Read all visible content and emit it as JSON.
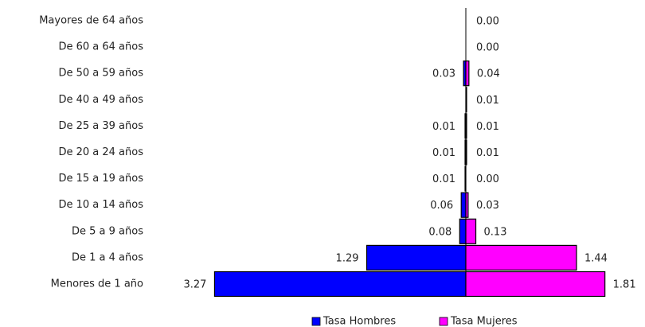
{
  "chart_data": {
    "type": "pyramid",
    "categories": [
      "Mayores de 64 años",
      "De 60 a 64 años",
      "De 50 a 59 años",
      "De 40 a 49 años",
      "De 25 a 39 años",
      "De 20 a 24 años",
      "De 15 a 19 años",
      "De 10 a 14 años",
      "De 5 a 9 años",
      "De 1 a 4 años",
      "Menores de 1 año"
    ],
    "series": [
      {
        "name": "Tasa Hombres",
        "color": "#0000ff",
        "side": "left",
        "values": [
          null,
          null,
          0.03,
          null,
          0.01,
          0.01,
          0.01,
          0.06,
          0.08,
          1.29,
          3.27
        ],
        "value_labels": [
          null,
          null,
          "0.03",
          null,
          "0.01",
          "0.01",
          "0.01",
          "0.06",
          "0.08",
          "1.29",
          "3.27"
        ]
      },
      {
        "name": "Tasa Mujeres",
        "color": "#ff00ff",
        "side": "right",
        "values": [
          0,
          0,
          0.04,
          0.01,
          0.01,
          0.01,
          0,
          0.03,
          0.13,
          1.44,
          1.81
        ],
        "value_labels": [
          "0.00",
          "0.00",
          "0.04",
          "0.01",
          "0.01",
          "0.01",
          "0.00",
          "0.03",
          "0.13",
          "1.44",
          "1.81"
        ]
      }
    ]
  }
}
